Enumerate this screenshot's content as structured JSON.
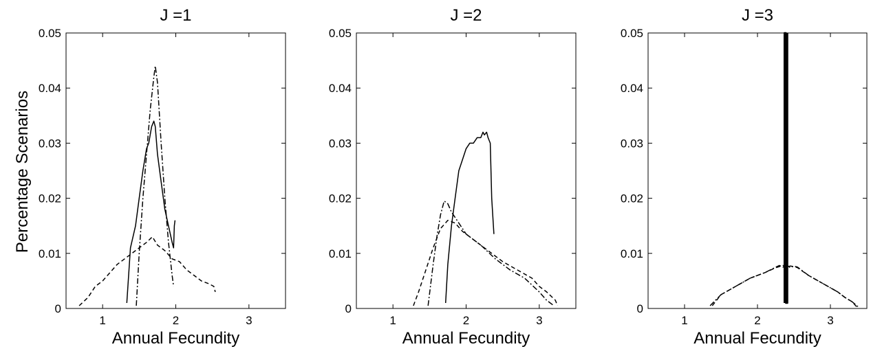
{
  "ylabel": "Percentage Scenarios",
  "chart_data": [
    {
      "type": "line",
      "title": "J =1",
      "xlabel": "Annual Fecundity",
      "ylabel": "Percentage Scenarios",
      "xlim": [
        0.5,
        3.5
      ],
      "ylim": [
        0,
        0.05
      ],
      "xticks": [
        "1",
        "2",
        "3"
      ],
      "yticks": [
        "0",
        "0.01",
        "0.02",
        "0.03",
        "0.04",
        "0.05"
      ],
      "series": [
        {
          "style": "solid",
          "x": [
            1.33,
            1.38,
            1.45,
            1.5,
            1.55,
            1.6,
            1.63,
            1.67,
            1.7,
            1.72,
            1.75,
            1.8,
            1.85,
            1.9,
            1.95,
            1.97,
            1.98,
            1.99
          ],
          "y": [
            0.001,
            0.011,
            0.015,
            0.02,
            0.025,
            0.029,
            0.03,
            0.033,
            0.034,
            0.033,
            0.028,
            0.023,
            0.018,
            0.015,
            0.012,
            0.011,
            0.015,
            0.016
          ]
        },
        {
          "style": "dashdot",
          "x": [
            1.46,
            1.5,
            1.55,
            1.6,
            1.65,
            1.7,
            1.72,
            1.75,
            1.8,
            1.85,
            1.9,
            1.95,
            1.97
          ],
          "y": [
            0.0005,
            0.01,
            0.02,
            0.028,
            0.036,
            0.042,
            0.044,
            0.041,
            0.03,
            0.02,
            0.012,
            0.006,
            0.004
          ]
        },
        {
          "style": "dashed",
          "x": [
            0.68,
            0.8,
            0.9,
            1.0,
            1.1,
            1.2,
            1.3,
            1.4,
            1.5,
            1.6,
            1.68,
            1.75,
            1.85,
            1.95,
            2.05,
            2.15,
            2.25,
            2.35,
            2.45,
            2.52,
            2.53,
            2.54
          ],
          "y": [
            0.0005,
            0.002,
            0.004,
            0.005,
            0.0065,
            0.008,
            0.009,
            0.01,
            0.011,
            0.012,
            0.013,
            0.0115,
            0.0105,
            0.009,
            0.0085,
            0.007,
            0.006,
            0.005,
            0.0045,
            0.004,
            0.0035,
            0.003
          ]
        }
      ]
    },
    {
      "type": "line",
      "title": "J =2",
      "xlabel": "Annual Fecundity",
      "ylabel": "",
      "xlim": [
        0.5,
        3.5
      ],
      "ylim": [
        0,
        0.05
      ],
      "xticks": [
        "1",
        "2",
        "3"
      ],
      "yticks": [
        "0",
        "0.01",
        "0.02",
        "0.03",
        "0.04",
        "0.05"
      ],
      "series": [
        {
          "style": "solid",
          "x": [
            1.72,
            1.75,
            1.8,
            1.85,
            1.9,
            1.95,
            2.0,
            2.05,
            2.1,
            2.15,
            2.2,
            2.23,
            2.25,
            2.28,
            2.3,
            2.33,
            2.35,
            2.38
          ],
          "y": [
            0.001,
            0.008,
            0.015,
            0.02,
            0.025,
            0.027,
            0.029,
            0.03,
            0.03,
            0.031,
            0.031,
            0.032,
            0.0315,
            0.032,
            0.031,
            0.03,
            0.02,
            0.0135
          ]
        },
        {
          "style": "dashdot",
          "x": [
            1.48,
            1.55,
            1.6,
            1.65,
            1.7,
            1.75,
            1.8,
            1.9,
            2.0,
            2.2,
            2.4,
            2.6,
            2.8,
            3.0,
            3.1,
            3.15,
            3.2
          ],
          "y": [
            0.0005,
            0.008,
            0.013,
            0.017,
            0.0195,
            0.019,
            0.0175,
            0.0155,
            0.0135,
            0.0115,
            0.009,
            0.007,
            0.0055,
            0.003,
            0.0015,
            0.001,
            0.0005
          ]
        },
        {
          "style": "dashed",
          "x": [
            1.28,
            1.35,
            1.45,
            1.55,
            1.65,
            1.75,
            1.85,
            1.95,
            2.1,
            2.3,
            2.5,
            2.7,
            2.9,
            3.0,
            3.1,
            3.18,
            3.22,
            3.25
          ],
          "y": [
            0.0005,
            0.003,
            0.007,
            0.011,
            0.0145,
            0.016,
            0.0155,
            0.014,
            0.0125,
            0.0105,
            0.0085,
            0.007,
            0.0055,
            0.004,
            0.003,
            0.002,
            0.0015,
            0.0005
          ]
        }
      ]
    },
    {
      "type": "line",
      "title": "J =3",
      "xlabel": "Annual Fecundity",
      "ylabel": "",
      "xlim": [
        0.5,
        3.5
      ],
      "ylim": [
        0,
        0.05
      ],
      "xticks": [
        "1",
        "2",
        "3"
      ],
      "yticks": [
        "0",
        "0.01",
        "0.02",
        "0.03",
        "0.04",
        "0.05"
      ],
      "series": [
        {
          "style": "solid-thick",
          "x": [
            2.37,
            2.37,
            2.39,
            2.39,
            2.41,
            2.41
          ],
          "y": [
            0.001,
            0.05,
            0.05,
            0.001,
            0.001,
            0.05
          ]
        },
        {
          "style": "dashdot",
          "x": [
            1.35,
            1.5,
            1.7,
            1.9,
            2.1,
            2.25,
            2.3,
            2.35,
            2.4,
            2.45,
            2.5,
            2.55,
            2.7,
            2.9,
            3.1,
            3.2,
            3.3,
            3.38
          ],
          "y": [
            0.0005,
            0.0025,
            0.004,
            0.0055,
            0.0065,
            0.0075,
            0.0078,
            0.0075,
            0.0079,
            0.0074,
            0.0077,
            0.0075,
            0.006,
            0.0045,
            0.003,
            0.002,
            0.0012,
            0.0003
          ]
        },
        {
          "style": "dashed",
          "x": [
            1.38,
            1.5,
            1.7,
            1.9,
            2.1,
            2.25,
            2.3,
            2.35,
            2.4,
            2.45,
            2.5,
            2.55,
            2.7,
            2.9,
            3.1,
            3.2,
            3.3,
            3.36
          ],
          "y": [
            0.0005,
            0.0025,
            0.004,
            0.0055,
            0.0065,
            0.0074,
            0.0076,
            0.0078,
            0.0075,
            0.0077,
            0.0076,
            0.0074,
            0.006,
            0.0045,
            0.003,
            0.002,
            0.0012,
            0.0003
          ]
        }
      ]
    }
  ]
}
